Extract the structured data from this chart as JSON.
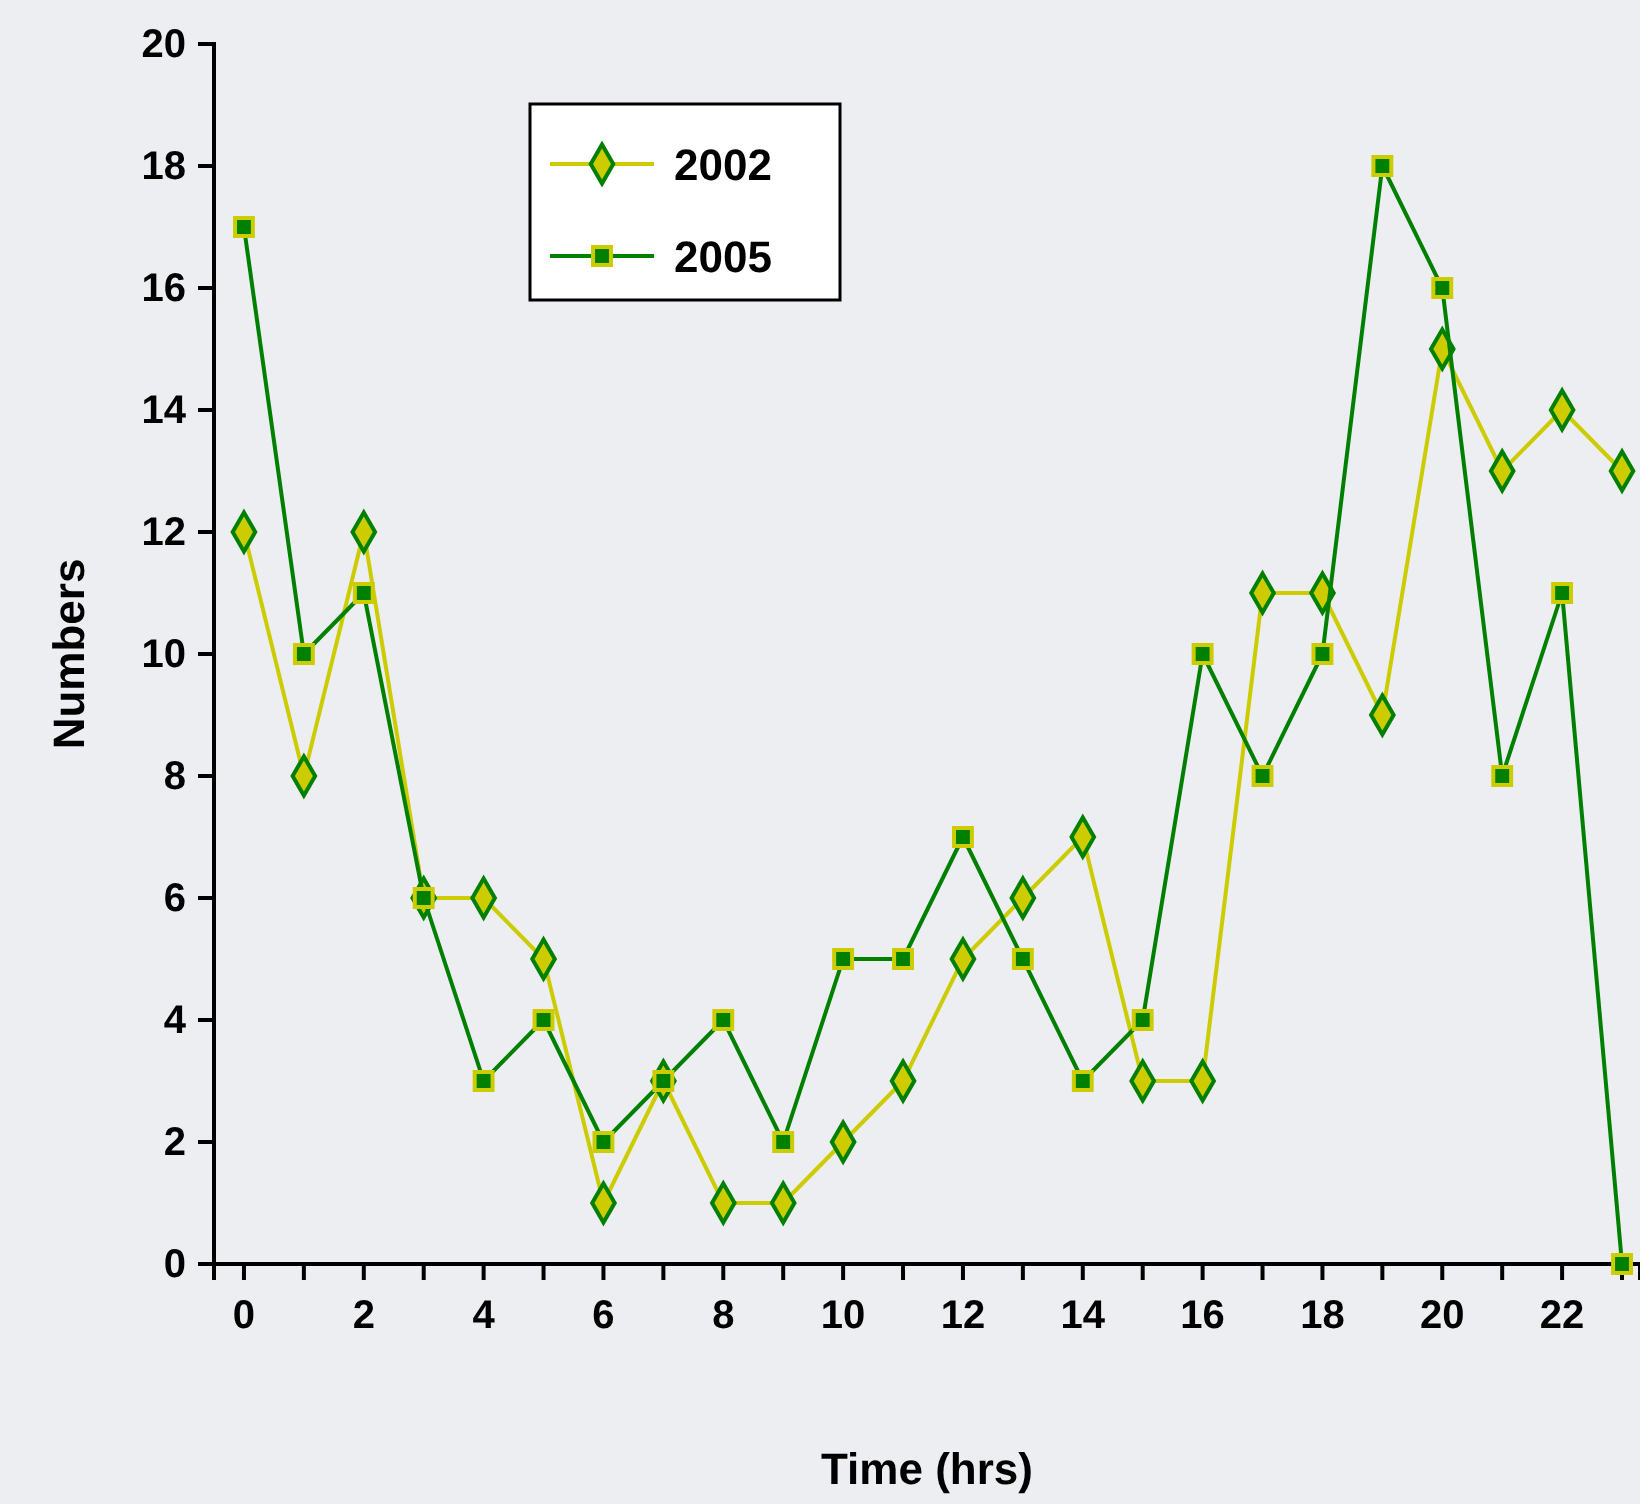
{
  "chart_data": {
    "type": "line",
    "xlabel": "Time (hrs)",
    "ylabel": "Numbers",
    "x": [
      0,
      1,
      2,
      3,
      4,
      5,
      6,
      7,
      8,
      9,
      10,
      11,
      12,
      13,
      14,
      15,
      16,
      17,
      18,
      19,
      20,
      21,
      22,
      23
    ],
    "series": [
      {
        "name": "2002",
        "color": "#cccc00",
        "marker": "diamond",
        "values": [
          12,
          8,
          12,
          6,
          6,
          5,
          1,
          3,
          1,
          1,
          2,
          3,
          5,
          6,
          7,
          3,
          3,
          11,
          11,
          9,
          15,
          13,
          14,
          13
        ]
      },
      {
        "name": "2005",
        "color": "#008000",
        "marker": "square",
        "values": [
          17,
          10,
          11,
          6,
          3,
          4,
          2,
          3,
          4,
          2,
          5,
          5,
          7,
          5,
          3,
          4,
          10,
          8,
          10,
          18,
          16,
          8,
          11,
          0
        ]
      }
    ],
    "xlim": [
      -0.5,
      23.3
    ],
    "xticks": [
      0,
      {
        "value": 1,
        "label": null
      },
      2,
      {
        "value": 3,
        "label": null
      },
      4,
      {
        "value": 5,
        "label": null
      },
      6,
      {
        "value": 7,
        "label": null
      },
      8,
      {
        "value": 9,
        "label": null
      },
      10,
      {
        "value": 11,
        "label": null
      },
      12,
      {
        "value": 13,
        "label": null
      },
      14,
      {
        "value": 15,
        "label": null
      },
      16,
      {
        "value": 17,
        "label": null
      },
      18,
      {
        "value": 19,
        "label": null
      },
      20,
      {
        "value": 21,
        "label": null
      },
      22,
      {
        "value": 23,
        "label": null
      }
    ],
    "ylim": [
      0,
      20
    ],
    "yticks": [
      0,
      2,
      4,
      6,
      8,
      10,
      12,
      14,
      16,
      18,
      20
    ],
    "grid": false,
    "legend": "top left",
    "line_style": "solid"
  }
}
